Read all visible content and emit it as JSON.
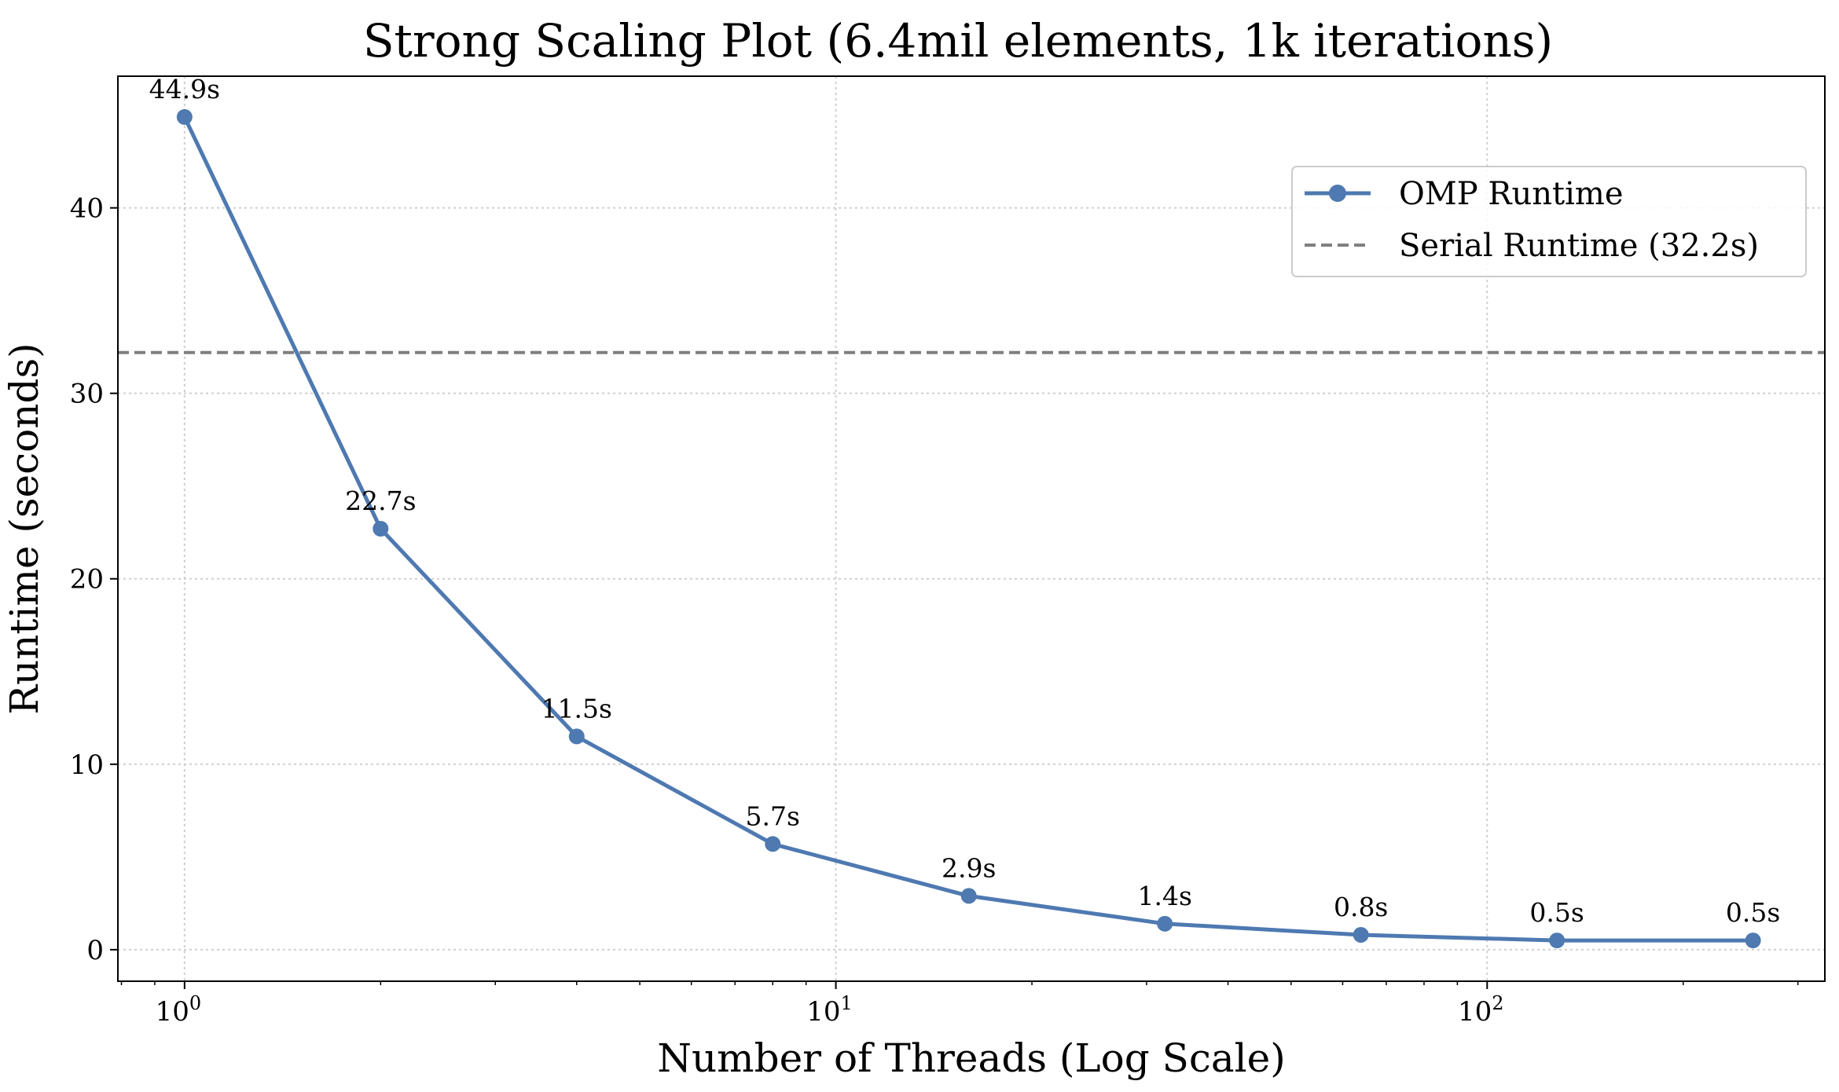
{
  "chart_data": {
    "type": "line",
    "title": "Strong Scaling Plot (6.4mil elements, 1k iterations)",
    "xlabel": "Number of Threads (Log Scale)",
    "ylabel": "Runtime (seconds)",
    "xscale": "log",
    "xlim": [
      0.79,
      330
    ],
    "ylim": [
      -1.7,
      47.1
    ],
    "grid": true,
    "legend_position": "upper-right",
    "x_ticks": [
      {
        "value": 1,
        "base": "10",
        "exp": "0"
      },
      {
        "value": 10,
        "base": "10",
        "exp": "1"
      },
      {
        "value": 100,
        "base": "10",
        "exp": "2"
      }
    ],
    "y_ticks": [
      0,
      10,
      20,
      30,
      40
    ],
    "series": [
      {
        "name": "OMP Runtime",
        "color": "#4e79b1",
        "marker": "circle",
        "x": [
          1,
          2,
          4,
          8,
          16,
          32,
          64,
          128,
          256
        ],
        "y": [
          44.9,
          22.7,
          11.5,
          5.7,
          2.9,
          1.4,
          0.8,
          0.5,
          0.5
        ],
        "labels": [
          "44.9s",
          "22.7s",
          "11.5s",
          "5.7s",
          "2.9s",
          "1.4s",
          "0.8s",
          "0.5s",
          "0.5s"
        ]
      }
    ],
    "reference_lines": [
      {
        "name": "Serial Runtime (32.2s)",
        "y": 32.2,
        "color": "#7f7f7f",
        "style": "dashed"
      }
    ]
  }
}
